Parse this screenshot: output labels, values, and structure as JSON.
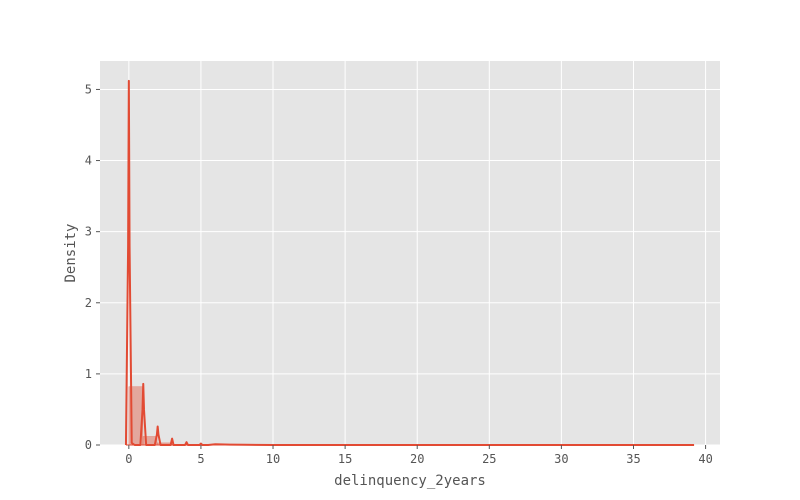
{
  "chart_data": {
    "type": "area",
    "title": "",
    "xlabel": "delinquency_2years",
    "ylabel": "Density",
    "xlim": [
      -2,
      41
    ],
    "ylim": [
      0,
      5.4
    ],
    "xticks": [
      0,
      5,
      10,
      15,
      20,
      25,
      30,
      35,
      40
    ],
    "yticks": [
      0,
      1,
      2,
      3,
      4,
      5
    ],
    "grid": true,
    "legend": "none",
    "colors": {
      "series": "#E24A33",
      "plot_bg": "#E5E5E5",
      "grid": "#FFFFFF",
      "text": "#555555"
    },
    "histogram": {
      "bin_width": 0.98,
      "bins": [
        {
          "x0": 0.0,
          "x1": 0.98,
          "density": 0.82
        },
        {
          "x0": 0.98,
          "x1": 1.96,
          "density": 0.12
        },
        {
          "x0": 1.96,
          "x1": 2.94,
          "density": 0.03
        },
        {
          "x0": 2.94,
          "x1": 3.92,
          "density": 0.01
        },
        {
          "x0": 3.92,
          "x1": 4.9,
          "density": 0.005
        },
        {
          "x0": 4.9,
          "x1": 39.2,
          "density": 0.0
        }
      ]
    },
    "kde": {
      "x": [
        -0.2,
        -0.05,
        0,
        0.05,
        0.2,
        0.4,
        0.8,
        0.95,
        1,
        1.05,
        1.2,
        1.5,
        1.8,
        1.95,
        2,
        2.05,
        2.2,
        2.6,
        2.9,
        3,
        3.1,
        3.4,
        3.9,
        4,
        4.1,
        4.5,
        4.9,
        5,
        5.1,
        5.5,
        6,
        7,
        8,
        10,
        15,
        20,
        25,
        30,
        35,
        39.2
      ],
      "y": [
        0.0,
        2.8,
        5.12,
        2.8,
        0.03,
        0.0,
        0.0,
        0.5,
        0.86,
        0.5,
        0.0,
        0.0,
        0.0,
        0.15,
        0.26,
        0.15,
        0.0,
        0.0,
        0.0,
        0.09,
        0.0,
        0.0,
        0.0,
        0.04,
        0.0,
        0.0,
        0.0,
        0.02,
        0.0,
        0.0,
        0.01,
        0.005,
        0.003,
        0.0,
        0.0,
        0.0,
        0.0,
        0.0,
        0.0,
        0.0
      ]
    }
  }
}
